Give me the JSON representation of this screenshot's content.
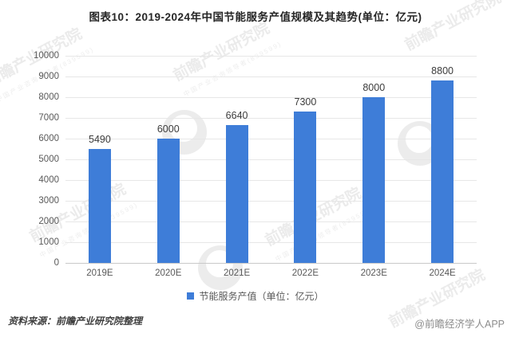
{
  "title": "图表10：2019-2024年中国节能服务产值规模及其趋势(单位：亿元)",
  "chart_data": {
    "type": "bar",
    "categories": [
      "2019E",
      "2020E",
      "2021E",
      "2022E",
      "2023E",
      "2024E"
    ],
    "values": [
      5490,
      6000,
      6640,
      7300,
      8000,
      8800
    ],
    "series_name": "节能服务产值（单位：亿元）",
    "title": "图表10：2019-2024年中国节能服务产值规模及其趋势(单位：亿元)",
    "xlabel": "",
    "ylabel": "",
    "ylim": [
      0,
      10000
    ],
    "yticks": [
      0,
      1000,
      2000,
      3000,
      4000,
      5000,
      6000,
      7000,
      8000,
      9000,
      10000
    ],
    "grid": true,
    "bar_color": "#3e7dd8",
    "legend_position": "bottom"
  },
  "legend": {
    "marker_color": "#3e7dd8",
    "label": "节能服务产值（单位：亿元）"
  },
  "footer": {
    "source": "资料来源：前瞻产业研究院整理",
    "credit": "@前瞻经济学人APP"
  },
  "watermark": {
    "brand": "前瞻产业研究院",
    "tagline": "中国产业咨询领导者(839599)"
  }
}
